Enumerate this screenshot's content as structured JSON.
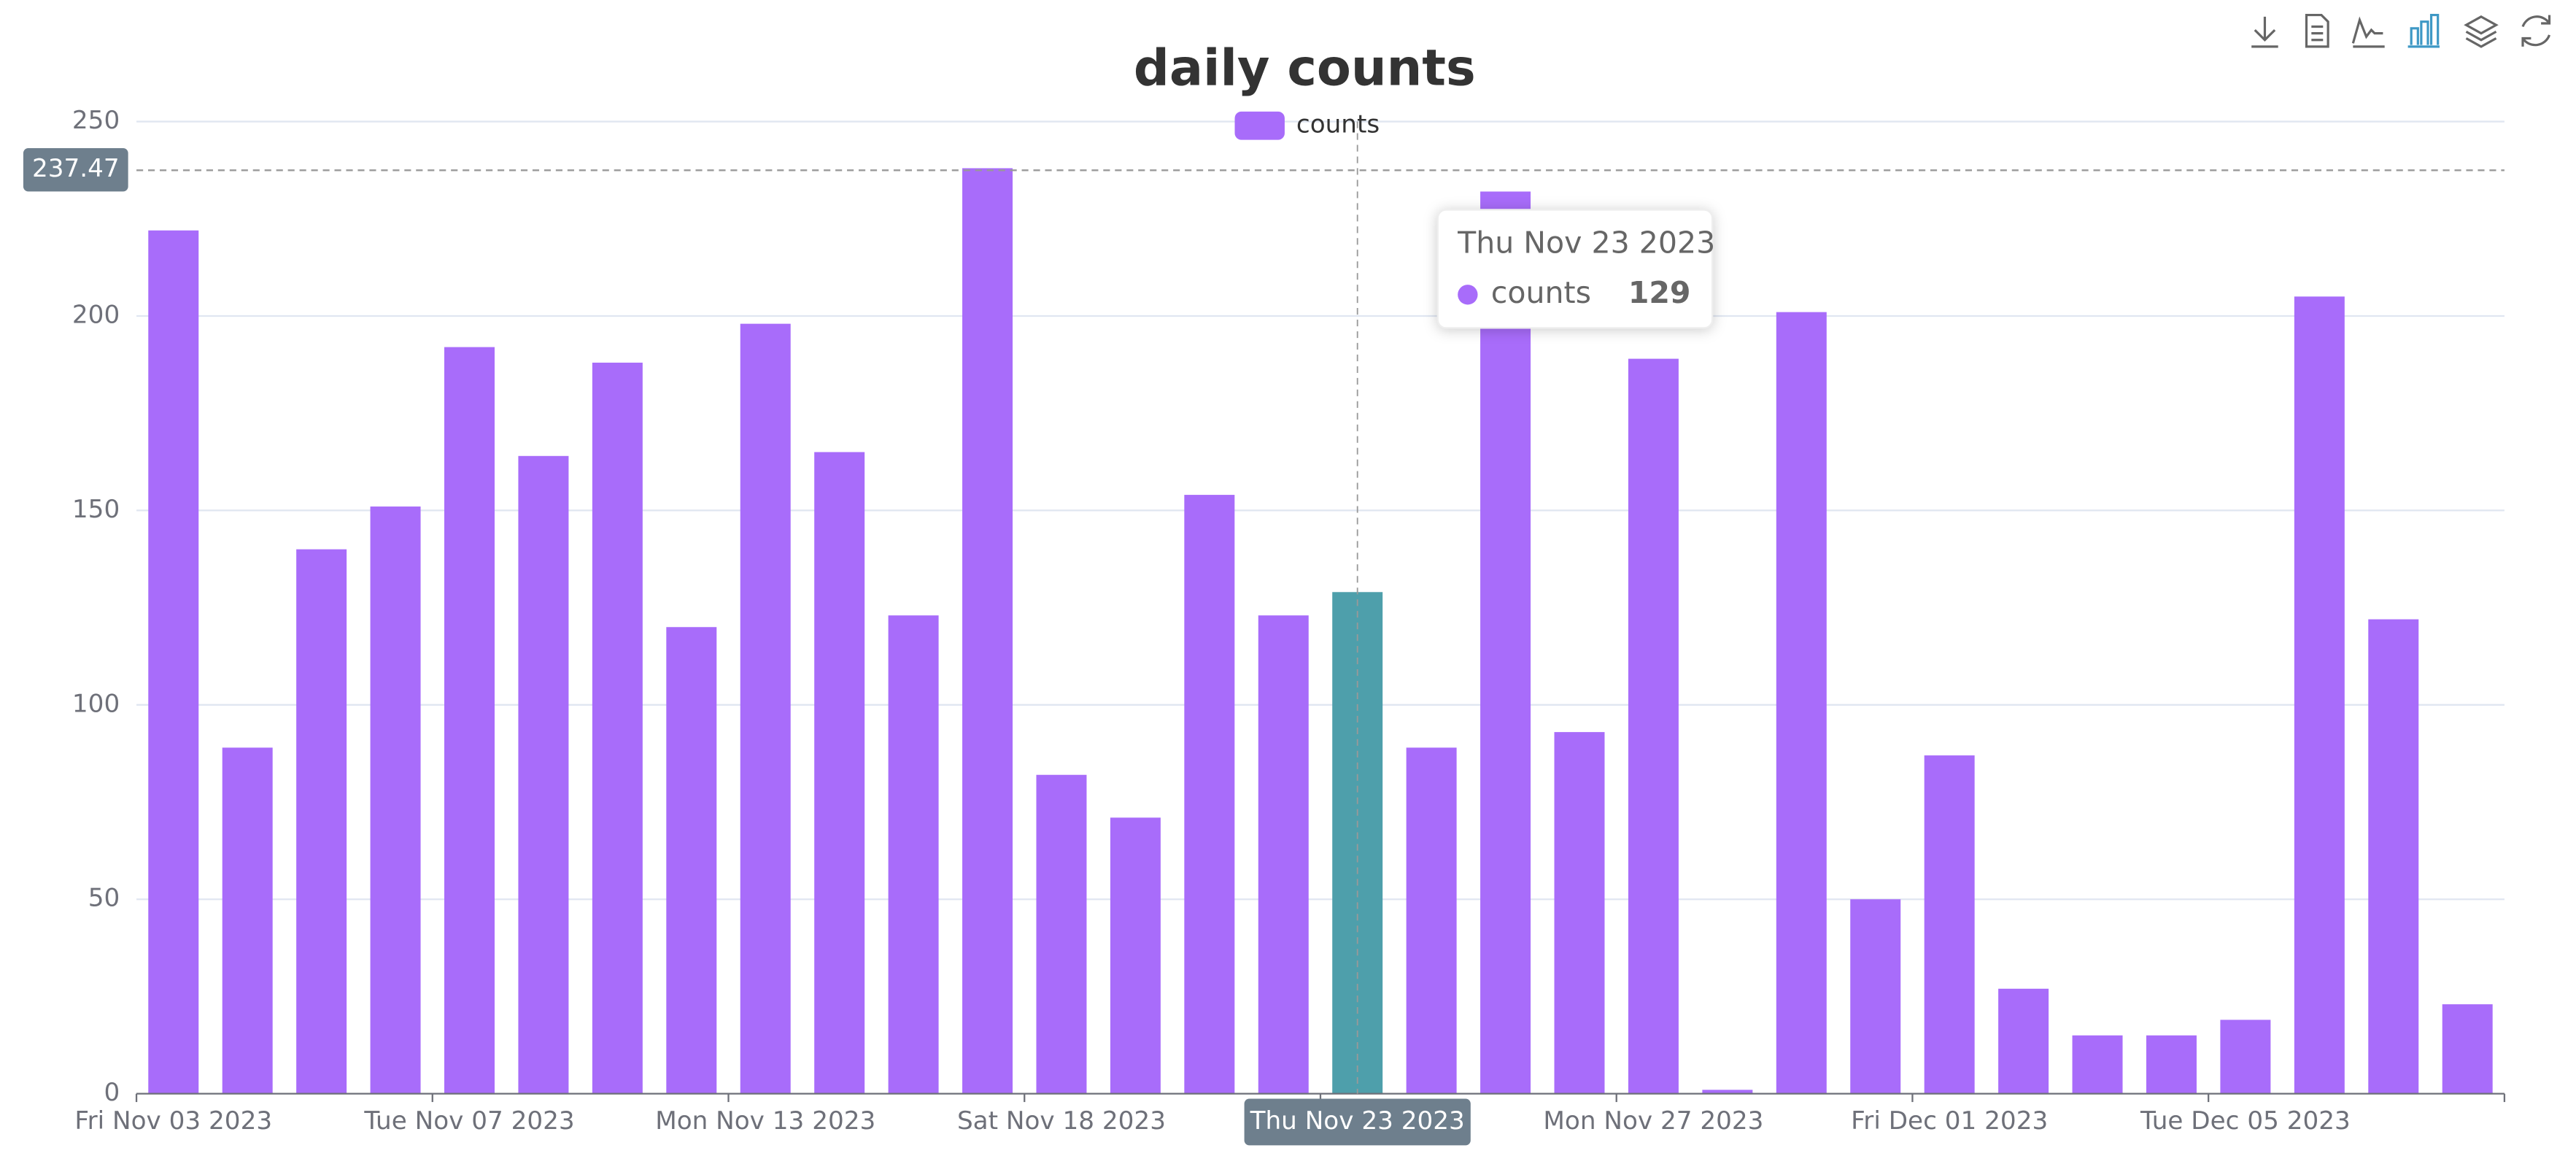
{
  "chart_data": {
    "type": "bar",
    "title": "daily counts",
    "categories": [
      "Fri Nov 03 2023",
      null,
      null,
      null,
      "Tue Nov 07 2023",
      null,
      null,
      null,
      "Mon Nov 13 2023",
      null,
      null,
      null,
      "Sat Nov 18 2023",
      null,
      null,
      null,
      "Thu Nov 23 2023",
      null,
      null,
      null,
      "Mon Nov 27 2023",
      null,
      null,
      null,
      "Fri Dec 01 2023",
      null,
      null,
      null,
      "Tue Dec 05 2023",
      null,
      null,
      null
    ],
    "series": [
      {
        "name": "counts",
        "color": "#a86cfa",
        "values": [
          222,
          89,
          140,
          151,
          192,
          164,
          188,
          120,
          198,
          165,
          123,
          238,
          82,
          71,
          154,
          123,
          129,
          89,
          232,
          93,
          189,
          1,
          201,
          50,
          87,
          27,
          15,
          15,
          19,
          205,
          122,
          23
        ]
      }
    ],
    "ylim": [
      0,
      250
    ],
    "yticks": [
      0,
      50,
      100,
      150,
      200,
      250
    ],
    "grid": true,
    "legend": "top",
    "hover_index": 16,
    "hover_color": "#4e9fab",
    "pointer_value": 237.47
  }
}
